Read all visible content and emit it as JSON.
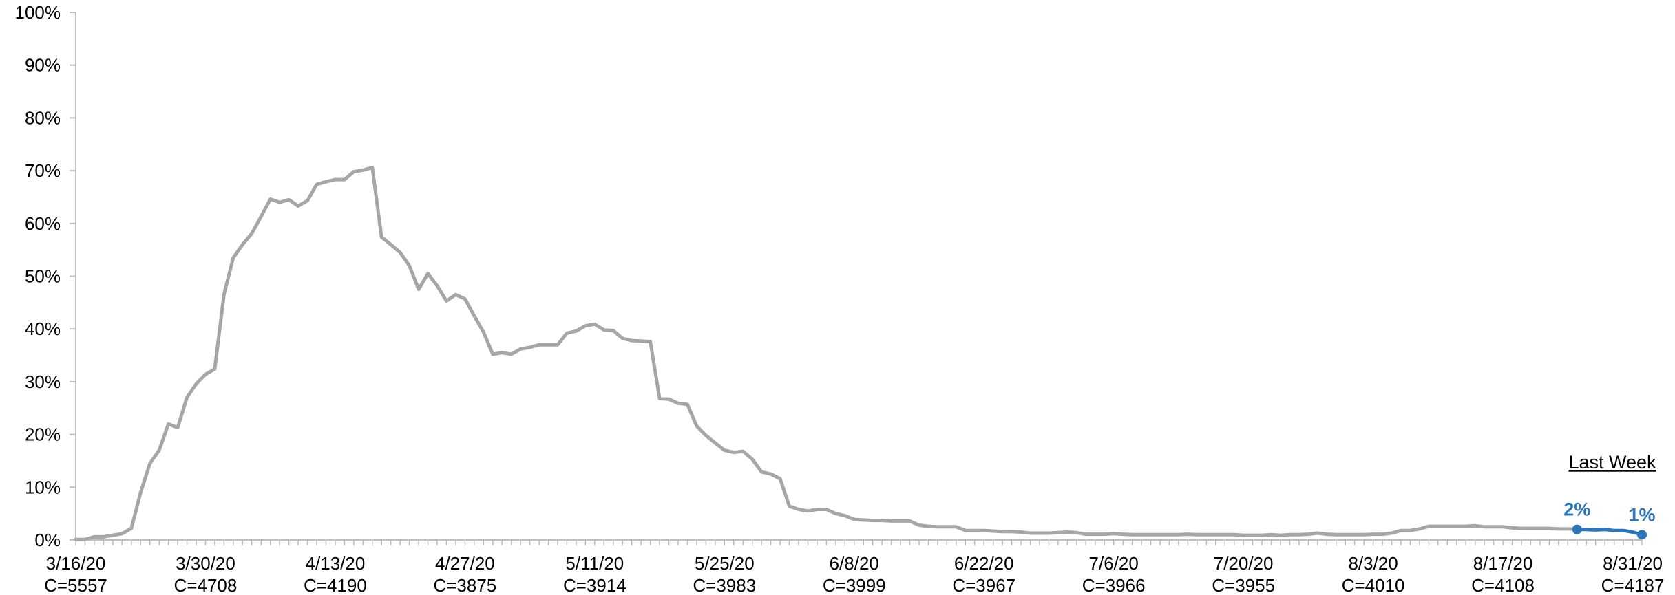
{
  "chart_data": {
    "type": "line",
    "y_axis": {
      "ylim": [
        0,
        100
      ],
      "ticks": [
        "0%",
        "10%",
        "20%",
        "30%",
        "40%",
        "50%",
        "60%",
        "70%",
        "80%",
        "90%",
        "100%"
      ]
    },
    "x_axis": {
      "labels": [
        {
          "date": "3/16/20",
          "count": "C=5557"
        },
        {
          "date": "3/30/20",
          "count": "C=4708"
        },
        {
          "date": "4/13/20",
          "count": "C=4190"
        },
        {
          "date": "4/27/20",
          "count": "C=3875"
        },
        {
          "date": "5/11/20",
          "count": "C=3914"
        },
        {
          "date": "5/25/20",
          "count": "C=3983"
        },
        {
          "date": "6/8/20",
          "count": "C=3999"
        },
        {
          "date": "6/22/20",
          "count": "C=3967"
        },
        {
          "date": "7/6/20",
          "count": "C=3966"
        },
        {
          "date": "7/20/20",
          "count": "C=3955"
        },
        {
          "date": "8/3/20",
          "count": "C=4010"
        },
        {
          "date": "8/17/20",
          "count": "C=4108"
        },
        {
          "date": "8/31/20",
          "count": "C=4187"
        }
      ]
    },
    "series": [
      {
        "color": "#a6a6a6",
        "values": [
          0.1,
          0.1,
          0.6,
          0.6,
          0.9,
          1.2,
          2.2,
          9.0,
          14.5,
          17.0,
          22.0,
          21.3,
          27.0,
          29.6,
          31.4,
          32.4,
          46.6,
          53.5,
          56.0,
          58.1,
          61.3,
          64.6,
          64.0,
          64.5,
          63.3,
          64.3,
          67.4,
          67.9,
          68.3,
          68.3,
          69.8,
          70.1,
          70.6,
          57.4,
          56.0,
          54.5,
          52.0,
          47.5,
          50.5,
          48.2,
          45.3,
          46.5,
          45.7,
          42.5,
          39.4,
          35.2,
          35.5,
          35.2,
          36.2,
          36.5,
          37.0,
          37.0,
          37.0,
          39.2,
          39.6,
          40.6,
          40.9,
          39.8,
          39.7,
          38.2,
          37.8,
          37.7,
          37.6,
          26.8,
          26.7,
          25.9,
          25.7,
          21.6,
          19.8,
          18.4,
          17.0,
          16.6,
          16.8,
          15.3,
          12.9,
          12.5,
          11.6,
          6.4,
          5.8,
          5.5,
          5.8,
          5.8,
          5.0,
          4.6,
          3.9,
          3.8,
          3.7,
          3.7,
          3.6,
          3.6,
          3.6,
          2.8,
          2.6,
          2.5,
          2.5,
          2.5,
          1.8,
          1.8,
          1.8,
          1.7,
          1.6,
          1.6,
          1.5,
          1.3,
          1.3,
          1.3,
          1.4,
          1.5,
          1.4,
          1.1,
          1.1,
          1.1,
          1.2,
          1.1,
          1.0,
          1.0,
          1.0,
          1.0,
          1.0,
          1.0,
          1.1,
          1.0,
          1.0,
          1.0,
          1.0,
          1.0,
          0.9,
          0.9,
          0.9,
          1.0,
          0.9,
          1.0,
          1.0,
          1.1,
          1.3,
          1.1,
          1.0,
          1.0,
          1.0,
          1.0,
          1.1,
          1.1,
          1.3,
          1.8,
          1.8,
          2.1,
          2.6,
          2.6,
          2.6,
          2.6,
          2.6,
          2.7,
          2.5,
          2.5,
          2.5,
          2.3,
          2.2,
          2.2,
          2.2,
          2.2,
          2.1,
          2.1,
          2.1
        ]
      },
      {
        "color": "#2e75b6",
        "values": [
          2.0,
          2.0,
          1.9,
          2.0,
          1.8,
          1.8,
          1.5,
          1.0
        ],
        "labels": [
          {
            "index": 0,
            "text": "2%"
          },
          {
            "index": 7,
            "text": "1%"
          }
        ]
      }
    ],
    "annotation": "Last Week",
    "grid": false
  }
}
